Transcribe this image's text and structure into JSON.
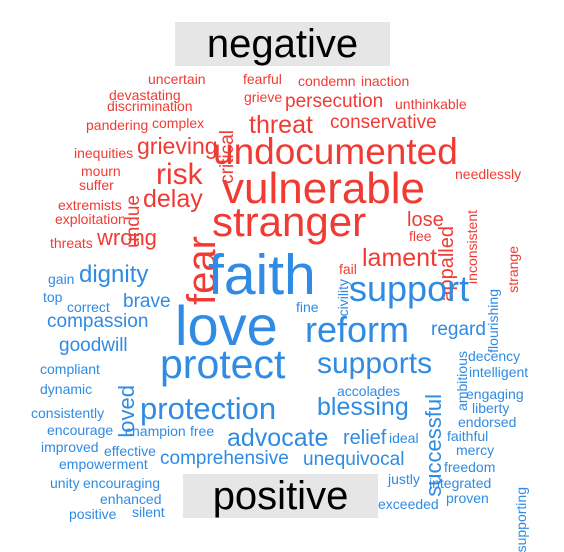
{
  "headers": {
    "negative": "negative",
    "positive": "positive"
  },
  "colors": {
    "negative": "#f03b35",
    "positive": "#2f8be3",
    "header_bg": "#e6e6e6",
    "header_text": "#000000"
  },
  "negative_words": [
    "uncertain",
    "fearful",
    "condemn",
    "inaction",
    "devastating",
    "grieve",
    "persecution",
    "discrimination",
    "unthinkable",
    "pandering",
    "complex",
    "critical",
    "threat",
    "conservative",
    "grieving",
    "inequities",
    "undocumented",
    "mourn",
    "needlessly",
    "suffer",
    "risk",
    "vulnerable",
    "extremists",
    "undue",
    "delay",
    "stranger",
    "exploitation",
    "lose",
    "inconsistent",
    "wrong",
    "flee",
    "threats",
    "appalled",
    "fear",
    "lament",
    "strange",
    "fail"
  ],
  "positive_words": [
    "faith",
    "love",
    "support",
    "reform",
    "protect",
    "supports",
    "dignity",
    "gain",
    "top",
    "correct",
    "brave",
    "civility",
    "fine",
    "flourishing",
    "compassion",
    "regard",
    "goodwill",
    "ambitious",
    "decency",
    "compliant",
    "intelligent",
    "dynamic",
    "loved",
    "accolades",
    "engaging",
    "protection",
    "blessing",
    "liberty",
    "consistently",
    "successful",
    "endorsed",
    "encourage",
    "champion",
    "free",
    "advocate",
    "relief",
    "ideal",
    "faithful",
    "improved",
    "effective",
    "mercy",
    "comprehensive",
    "unequivocal",
    "empowerment",
    "freedom",
    "unity",
    "encouraging",
    "justly",
    "integrated",
    "enhanced",
    "exceeded",
    "proven",
    "supporting",
    "positive",
    "silent"
  ]
}
